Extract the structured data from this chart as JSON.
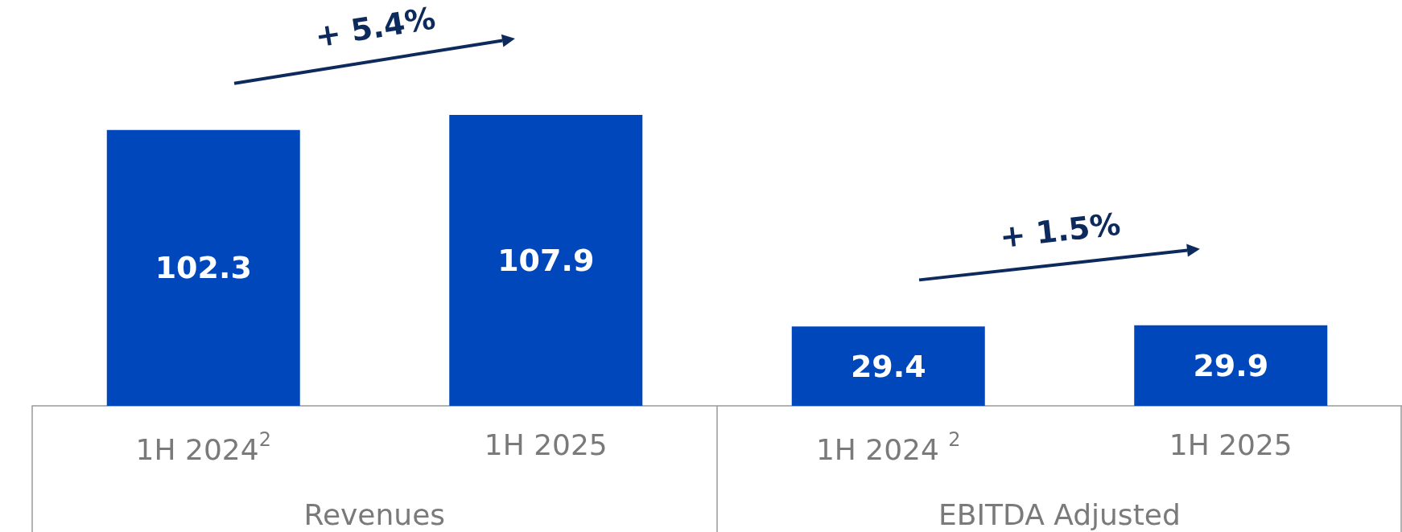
{
  "chart_data": {
    "type": "bar",
    "categories": [
      "1H 2024$^{2}$",
      "1H 2025",
      "1H 2024 $^{2}$",
      "1H 2025"
    ],
    "values": [
      102.3,
      107.9,
      29.4,
      29.9
    ],
    "color": "#0047bb",
    "data_labels": true,
    "annotations": [
      "+ 5.4%",
      "+ 1.5%",
      "Revenues",
      "EBITDA Adjusted"
    ]
  }
}
